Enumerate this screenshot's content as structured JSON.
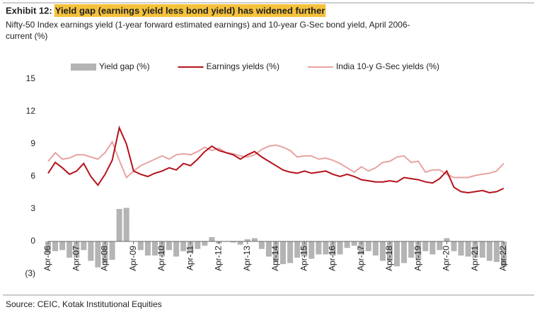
{
  "chart_data": {
    "type": "bar_line",
    "label": "Exhibit 12:",
    "title": "Yield gap (earnings yield less bond yield) has widened further",
    "subtitle": [
      "Nifty-50 Index earnings yield (1-year forward estimated earnings) and 10-year G-Sec bond yield, April 2006-",
      "current (%)"
    ],
    "source": "Source: CEIC, Kotak Institutional Equities",
    "categories": [
      "Apr-06",
      null,
      null,
      null,
      "Apr-07",
      null,
      null,
      null,
      "Apr-08",
      null,
      null,
      null,
      "Apr-09",
      null,
      null,
      null,
      "Apr-10",
      null,
      null,
      null,
      "Apr-11",
      null,
      null,
      null,
      "Apr-12",
      null,
      null,
      null,
      "Apr-13",
      null,
      null,
      null,
      "Apr-14",
      null,
      null,
      null,
      "Apr-15",
      null,
      null,
      null,
      "Apr-16",
      null,
      null,
      null,
      "Apr-17",
      null,
      null,
      null,
      "Apr-18",
      null,
      null,
      null,
      "Apr-19",
      null,
      null,
      null,
      "Apr-20",
      null,
      null,
      null,
      "Apr-21",
      null,
      null,
      null,
      "Apr-22"
    ],
    "series": [
      {
        "name": "Yield gap (%)",
        "type": "bar",
        "color": "#b4b4b4",
        "values": [
          -1.1,
          -0.9,
          -0.8,
          -1.5,
          -1.5,
          -0.8,
          -1.8,
          -2.4,
          -2.0,
          -1.7,
          3.0,
          3.1,
          0,
          -0.8,
          -1.3,
          -1.3,
          -1.4,
          -0.8,
          -1.4,
          -0.9,
          -1.0,
          -0.7,
          -0.4,
          0.4,
          -0.2,
          0,
          -0.1,
          -0.3,
          0.2,
          0.3,
          -0.7,
          -1.4,
          -1.9,
          -2.1,
          -2.0,
          -1.5,
          -1.4,
          -1.6,
          -1.2,
          -1.2,
          -1.3,
          -1.2,
          -0.6,
          -0.4,
          -1.2,
          -0.9,
          -1.3,
          -1.8,
          -1.8,
          -2.3,
          -2.0,
          -1.5,
          -1.7,
          -0.9,
          -1.2,
          -0.8,
          0.3,
          -0.9,
          -1.3,
          -1.4,
          -1.5,
          -1.5,
          -1.8,
          -1.9,
          -2.3
        ]
      },
      {
        "name": "Earnings yields (%)",
        "type": "line",
        "color": "#b5121b",
        "values": [
          6.3,
          7.3,
          6.8,
          6.2,
          6.5,
          7.2,
          6.0,
          5.2,
          6.2,
          7.5,
          10.5,
          9.0,
          6.5,
          6.2,
          6.0,
          6.3,
          6.5,
          6.8,
          6.6,
          7.2,
          7.0,
          7.6,
          8.3,
          8.8,
          8.4,
          8.2,
          8.0,
          7.6,
          8.0,
          8.3,
          7.8,
          7.4,
          7.0,
          6.6,
          6.4,
          6.3,
          6.5,
          6.3,
          6.4,
          6.5,
          6.2,
          6.0,
          6.2,
          6.0,
          5.7,
          5.6,
          5.5,
          5.5,
          5.6,
          5.5,
          5.9,
          5.8,
          5.7,
          5.5,
          5.4,
          5.8,
          6.5,
          5.0,
          4.6,
          4.5,
          4.6,
          4.7,
          4.5,
          4.6,
          4.9
        ]
      },
      {
        "name": "India 10-y G-Sec yields (%)",
        "type": "line",
        "color": "#e8a3a3",
        "values": [
          7.4,
          8.2,
          7.6,
          7.7,
          8.0,
          8.0,
          7.8,
          7.6,
          8.2,
          9.2,
          7.5,
          5.9,
          6.5,
          7.0,
          7.3,
          7.6,
          7.9,
          7.6,
          8.0,
          8.1,
          8.0,
          8.3,
          8.7,
          8.4,
          8.6,
          8.2,
          8.1,
          7.9,
          7.8,
          8.0,
          8.5,
          8.8,
          8.9,
          8.7,
          8.4,
          7.8,
          7.9,
          7.9,
          7.6,
          7.7,
          7.5,
          7.2,
          6.8,
          6.4,
          6.9,
          6.5,
          6.8,
          7.3,
          7.4,
          7.8,
          7.9,
          7.3,
          7.4,
          6.4,
          6.6,
          6.6,
          6.2,
          5.9,
          5.9,
          5.9,
          6.1,
          6.2,
          6.3,
          6.5,
          7.2
        ]
      }
    ],
    "ylim": [
      -3,
      15
    ],
    "yticks": [
      15,
      12,
      9,
      6,
      3,
      0,
      {
        "value": -3,
        "label": "(3)"
      }
    ]
  }
}
